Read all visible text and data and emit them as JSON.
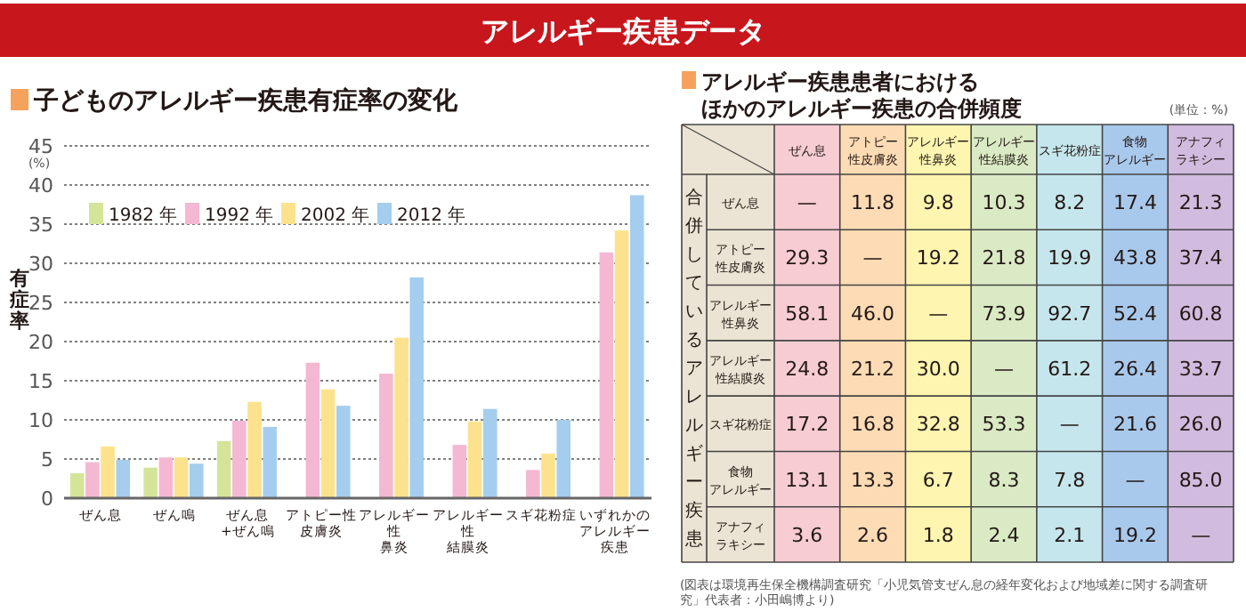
{
  "chart_data": [
    {
      "type": "bar",
      "title": "アレルギー疾患データ",
      "subtitle": "子どものアレルギー疾患有症率の変化",
      "ylabel": "有症率",
      "annotations": [
        "(%)"
      ],
      "categories": [
        "ぜん息",
        "ぜん鳴",
        "ぜん息+ぜん鳴",
        "アトピー性皮膚炎",
        "アレルギー性鼻炎",
        "アレルギー性結膜炎",
        "スギ花粉症",
        "いずれかのアレルギー疾患"
      ],
      "series": [
        {
          "name": "1982 年",
          "color": "#d4e59a",
          "values": [
            3.2,
            3.9,
            7.3,
            null,
            null,
            null,
            null,
            null
          ]
        },
        {
          "name": "1992 年",
          "color": "#f4b8d2",
          "values": [
            4.6,
            5.2,
            9.9,
            17.3,
            15.9,
            6.8,
            3.6,
            31.4
          ]
        },
        {
          "name": "2002 年",
          "color": "#fde28e",
          "values": [
            6.6,
            5.2,
            12.3,
            13.9,
            20.5,
            9.8,
            5.7,
            34.2
          ]
        },
        {
          "name": "2012 年",
          "color": "#a5cdee",
          "values": [
            4.9,
            4.4,
            9.1,
            11.8,
            28.2,
            11.4,
            10.0,
            38.7
          ]
        }
      ],
      "ylim": [
        0,
        45
      ],
      "yticks": [
        0,
        5,
        10,
        15,
        20,
        25,
        30,
        35,
        40,
        45
      ],
      "grid": "y",
      "legend": "top left"
    },
    {
      "type": "heatmap",
      "title": "アレルギー疾患患者におけるほかのアレルギー疾患の合併頻度",
      "ylabel": "合併しているアレルギー疾患",
      "annotations": [
        "(単位：%)",
        "(図表は環境再生保全機構調査研究「小児気管支ぜん息の経年変化および地域差に関する調査研究」代表者：小田嶋博より)"
      ],
      "categories": [
        "ぜん息",
        "アトピー性皮膚炎",
        "アレルギー性鼻炎",
        "アレルギー性結膜炎",
        "スギ花粉症",
        "食物アレルギー",
        "アナフィラキシー"
      ],
      "y_categories": [
        "ぜん息",
        "アトピー性皮膚炎",
        "アレルギー性鼻炎",
        "アレルギー性結膜炎",
        "スギ花粉症",
        "食物アレルギー",
        "アナフィラキシー"
      ],
      "colors": [
        "#f7ccd3",
        "#fddcb5",
        "#fdf5b0",
        "#d9eac4",
        "#c5e6ec",
        "#a9c9ec",
        "#d1bbde"
      ],
      "cells": [
        [
          null,
          11.8,
          9.8,
          10.3,
          8.2,
          17.4,
          21.3
        ],
        [
          29.3,
          null,
          19.2,
          21.8,
          19.9,
          43.8,
          37.4
        ],
        [
          58.1,
          46.0,
          null,
          73.9,
          92.7,
          52.4,
          60.8
        ],
        [
          24.8,
          21.2,
          30.0,
          null,
          61.2,
          26.4,
          33.7
        ],
        [
          17.2,
          16.8,
          32.8,
          53.3,
          null,
          21.6,
          26.0
        ],
        [
          13.1,
          13.3,
          6.7,
          8.3,
          7.8,
          null,
          85.0
        ],
        [
          3.6,
          2.6,
          1.8,
          2.4,
          2.1,
          19.2,
          null
        ]
      ],
      "cell_labels": [
        [
          "—",
          "11.8",
          "9.8",
          "10.3",
          "8.2",
          "17.4",
          "21.3"
        ],
        [
          "29.3",
          "—",
          "19.2",
          "21.8",
          "19.9",
          "43.8",
          "37.4"
        ],
        [
          "58.1",
          "46.0",
          "—",
          "73.9",
          "92.7",
          "52.4",
          "60.8"
        ],
        [
          "24.8",
          "21.2",
          "30.0",
          "—",
          "61.2",
          "26.4",
          "33.7"
        ],
        [
          "17.2",
          "16.8",
          "32.8",
          "53.3",
          "—",
          "21.6",
          "26.0"
        ],
        [
          "13.1",
          "13.3",
          "6.7",
          "8.3",
          "7.8",
          "—",
          "85.0"
        ],
        [
          "3.6",
          "2.6",
          "1.8",
          "2.4",
          "2.1",
          "19.2",
          "—"
        ]
      ],
      "grid": true
    }
  ]
}
